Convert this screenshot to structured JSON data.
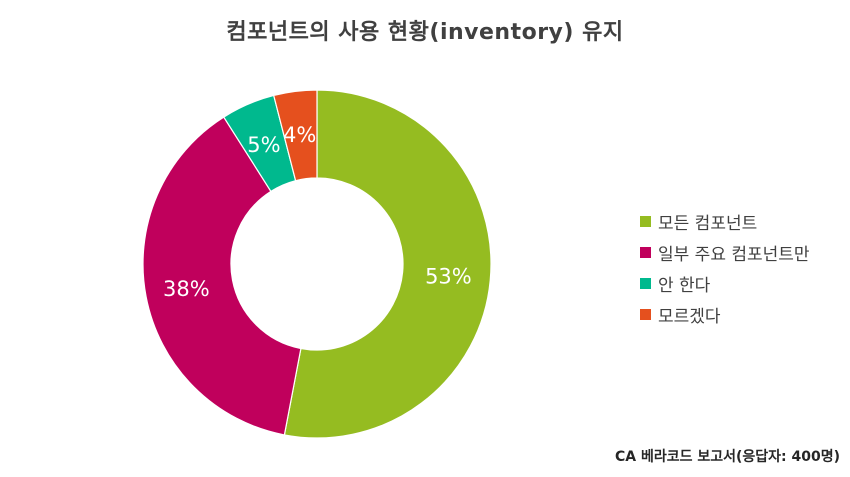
{
  "chart_data": {
    "type": "pie",
    "title": "컴포넌트의 사용 현황(inventory) 유지",
    "categories": [
      "모든 컴포넌트",
      "일부 주요 컴포넌트만",
      "안 한다",
      "모르겠다"
    ],
    "values": [
      53,
      38,
      5,
      4
    ],
    "data_labels": [
      "53%",
      "38%",
      "5%",
      "4%"
    ],
    "colors": [
      "#95BC21",
      "#C0005C",
      "#00B98E",
      "#E5501E"
    ],
    "legend_position": "right",
    "style": "donut"
  },
  "source": "CA 베라코드 보고서(응답자: 400명)"
}
